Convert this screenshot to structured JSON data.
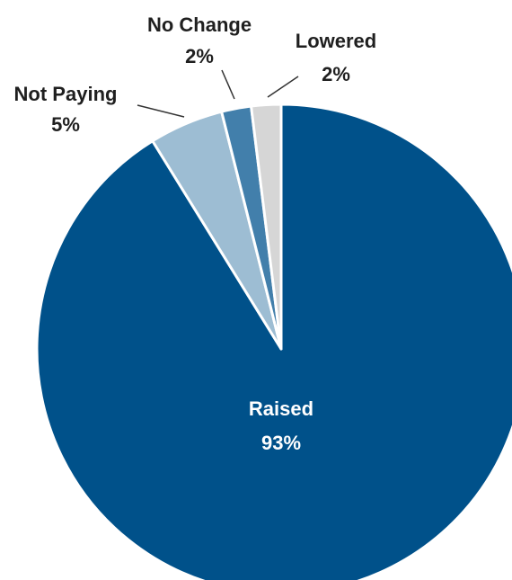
{
  "chart_data": {
    "type": "pie",
    "title": "",
    "slices": [
      {
        "label": "Raised",
        "value": 93,
        "value_label": "93%",
        "color": "#00518a"
      },
      {
        "label": "Not Paying",
        "value": 5,
        "value_label": "5%",
        "color": "#9dbdd3"
      },
      {
        "label": "No Change",
        "value": 2,
        "value_label": "2%",
        "color": "#427fab"
      },
      {
        "label": "Lowered",
        "value": 2,
        "value_label": "2%",
        "color": "#d6d6d6"
      }
    ]
  }
}
